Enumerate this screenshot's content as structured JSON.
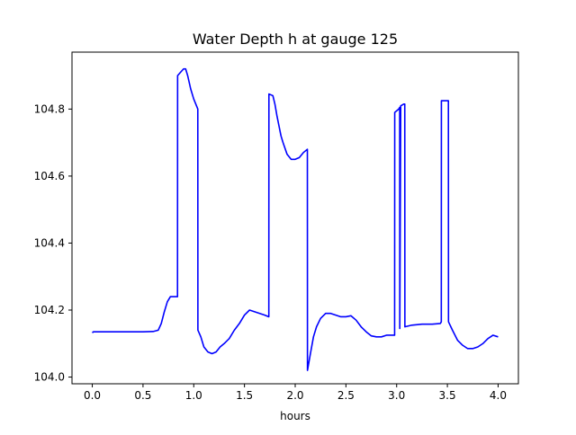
{
  "chart_data": {
    "type": "line",
    "title": "Water Depth h at gauge 125",
    "xlabel": "hours",
    "ylabel": "",
    "xlim": [
      -0.2,
      4.2
    ],
    "ylim": [
      103.98,
      104.97
    ],
    "x_ticks": [
      0.0,
      0.5,
      1.0,
      1.5,
      2.0,
      2.5,
      3.0,
      3.5,
      4.0
    ],
    "x_tick_labels": [
      "0.0",
      "0.5",
      "1.0",
      "1.5",
      "2.0",
      "2.5",
      "3.0",
      "3.5",
      "4.0"
    ],
    "y_ticks": [
      104.0,
      104.2,
      104.4,
      104.6,
      104.8
    ],
    "y_tick_labels": [
      "104.0",
      "104.2",
      "104.4",
      "104.6",
      "104.8"
    ],
    "grid": false,
    "legend": "none",
    "series": [
      {
        "color": "#0000ff",
        "x": [
          0.0,
          0.01,
          0.1,
          0.3,
          0.5,
          0.6,
          0.65,
          0.68,
          0.71,
          0.74,
          0.77,
          0.8,
          0.84,
          0.841,
          0.87,
          0.9,
          0.92,
          0.94,
          0.97,
          1.0,
          1.04,
          1.041,
          1.07,
          1.1,
          1.14,
          1.18,
          1.22,
          1.26,
          1.3,
          1.35,
          1.4,
          1.45,
          1.5,
          1.55,
          1.6,
          1.65,
          1.7,
          1.74,
          1.741,
          1.78,
          1.8,
          1.82,
          1.84,
          1.86,
          1.88,
          1.92,
          1.96,
          2.0,
          2.04,
          2.08,
          2.12,
          2.121,
          2.15,
          2.18,
          2.21,
          2.25,
          2.3,
          2.35,
          2.4,
          2.45,
          2.5,
          2.55,
          2.6,
          2.65,
          2.7,
          2.75,
          2.8,
          2.85,
          2.9,
          2.95,
          2.98,
          2.981,
          3.02,
          3.03,
          3.031,
          3.04,
          3.041,
          3.07,
          3.08,
          3.081,
          3.15,
          3.25,
          3.35,
          3.43,
          3.44,
          3.441,
          3.5,
          3.51,
          3.511,
          3.55,
          3.6,
          3.65,
          3.7,
          3.75,
          3.8,
          3.85,
          3.9,
          3.95,
          4.0
        ],
        "y": [
          104.132,
          104.135,
          104.135,
          104.135,
          104.135,
          104.136,
          104.14,
          104.16,
          104.195,
          104.225,
          104.24,
          104.24,
          104.24,
          104.9,
          104.91,
          104.92,
          104.92,
          104.9,
          104.86,
          104.83,
          104.8,
          104.14,
          104.12,
          104.09,
          104.075,
          104.07,
          104.075,
          104.09,
          104.1,
          104.115,
          104.14,
          104.16,
          104.185,
          104.2,
          104.195,
          104.19,
          104.185,
          104.18,
          104.845,
          104.84,
          104.815,
          104.78,
          104.75,
          104.72,
          104.7,
          104.665,
          104.65,
          104.65,
          104.655,
          104.67,
          104.68,
          104.02,
          104.07,
          104.12,
          104.15,
          104.175,
          104.19,
          104.19,
          104.185,
          104.18,
          104.18,
          104.183,
          104.17,
          104.15,
          104.135,
          104.123,
          104.12,
          104.12,
          104.125,
          104.125,
          104.125,
          104.79,
          104.8,
          104.805,
          104.145,
          104.81,
          104.81,
          104.815,
          104.815,
          104.15,
          104.155,
          104.158,
          104.158,
          104.16,
          104.165,
          104.825,
          104.825,
          104.825,
          104.165,
          104.14,
          104.11,
          104.095,
          104.085,
          104.085,
          104.09,
          104.1,
          104.115,
          104.125,
          104.12
        ]
      }
    ]
  }
}
